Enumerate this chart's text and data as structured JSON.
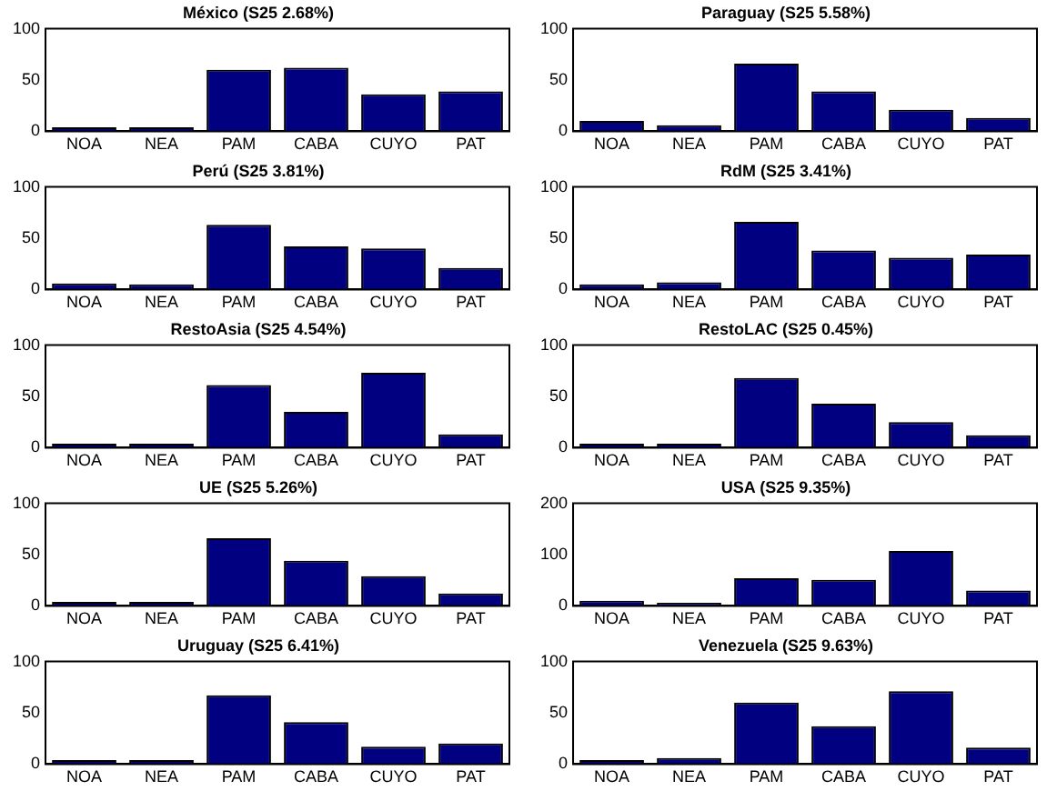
{
  "chart_data": [
    {
      "type": "bar",
      "title": "México (S25 2.68%)",
      "categories": [
        "NOA",
        "NEA",
        "PAM",
        "CABA",
        "CUYO",
        "PAT"
      ],
      "values": [
        4,
        4,
        60,
        62,
        36,
        39
      ],
      "color": "#000080",
      "ylim": [
        0,
        100
      ],
      "yticks": [
        0,
        50,
        100
      ]
    },
    {
      "type": "bar",
      "title": "Paraguay (S25 5.58%)",
      "categories": [
        "NOA",
        "NEA",
        "PAM",
        "CABA",
        "CUYO",
        "PAT"
      ],
      "values": [
        10,
        6,
        66,
        39,
        21,
        13
      ],
      "color": "#000080",
      "ylim": [
        0,
        100
      ],
      "yticks": [
        0,
        50,
        100
      ]
    },
    {
      "type": "bar",
      "title": "Perú (S25 3.81%)",
      "categories": [
        "NOA",
        "NEA",
        "PAM",
        "CABA",
        "CUYO",
        "PAT"
      ],
      "values": [
        6,
        5,
        63,
        42,
        40,
        21
      ],
      "color": "#000080",
      "ylim": [
        0,
        100
      ],
      "yticks": [
        0,
        50,
        100
      ]
    },
    {
      "type": "bar",
      "title": "RdM (S25 3.41%)",
      "categories": [
        "NOA",
        "NEA",
        "PAM",
        "CABA",
        "CUYO",
        "PAT"
      ],
      "values": [
        5,
        7,
        66,
        38,
        31,
        34
      ],
      "color": "#000080",
      "ylim": [
        0,
        100
      ],
      "yticks": [
        0,
        50,
        100
      ]
    },
    {
      "type": "bar",
      "title": "RestoAsia (S25 4.54%)",
      "categories": [
        "NOA",
        "NEA",
        "PAM",
        "CABA",
        "CUYO",
        "PAT"
      ],
      "values": [
        4,
        4,
        61,
        35,
        73,
        13
      ],
      "color": "#000080",
      "ylim": [
        0,
        100
      ],
      "yticks": [
        0,
        50,
        100
      ]
    },
    {
      "type": "bar",
      "title": "RestoLAC (S25 0.45%)",
      "categories": [
        "NOA",
        "NEA",
        "PAM",
        "CABA",
        "CUYO",
        "PAT"
      ],
      "values": [
        4,
        4,
        68,
        43,
        25,
        12
      ],
      "color": "#000080",
      "ylim": [
        0,
        100
      ],
      "yticks": [
        0,
        50,
        100
      ]
    },
    {
      "type": "bar",
      "title": "UE (S25 5.26%)",
      "categories": [
        "NOA",
        "NEA",
        "PAM",
        "CABA",
        "CUYO",
        "PAT"
      ],
      "values": [
        4,
        4,
        66,
        44,
        29,
        12
      ],
      "color": "#000080",
      "ylim": [
        0,
        100
      ],
      "yticks": [
        0,
        50,
        100
      ]
    },
    {
      "type": "bar",
      "title": "USA (S25 9.35%)",
      "categories": [
        "NOA",
        "NEA",
        "PAM",
        "CABA",
        "CUYO",
        "PAT"
      ],
      "values": [
        10,
        6,
        54,
        51,
        107,
        30
      ],
      "color": "#000080",
      "ylim": [
        0,
        200
      ],
      "yticks": [
        0,
        100,
        200
      ]
    },
    {
      "type": "bar",
      "title": "Uruguay (S25 6.41%)",
      "categories": [
        "NOA",
        "NEA",
        "PAM",
        "CABA",
        "CUYO",
        "PAT"
      ],
      "values": [
        4,
        4,
        67,
        41,
        17,
        20
      ],
      "color": "#000080",
      "ylim": [
        0,
        100
      ],
      "yticks": [
        0,
        50,
        100
      ]
    },
    {
      "type": "bar",
      "title": "Venezuela (S25 9.63%)",
      "categories": [
        "NOA",
        "NEA",
        "PAM",
        "CABA",
        "CUYO",
        "PAT"
      ],
      "values": [
        4,
        6,
        60,
        37,
        71,
        16
      ],
      "color": "#000080",
      "ylim": [
        0,
        100
      ],
      "yticks": [
        0,
        50,
        100
      ]
    }
  ]
}
